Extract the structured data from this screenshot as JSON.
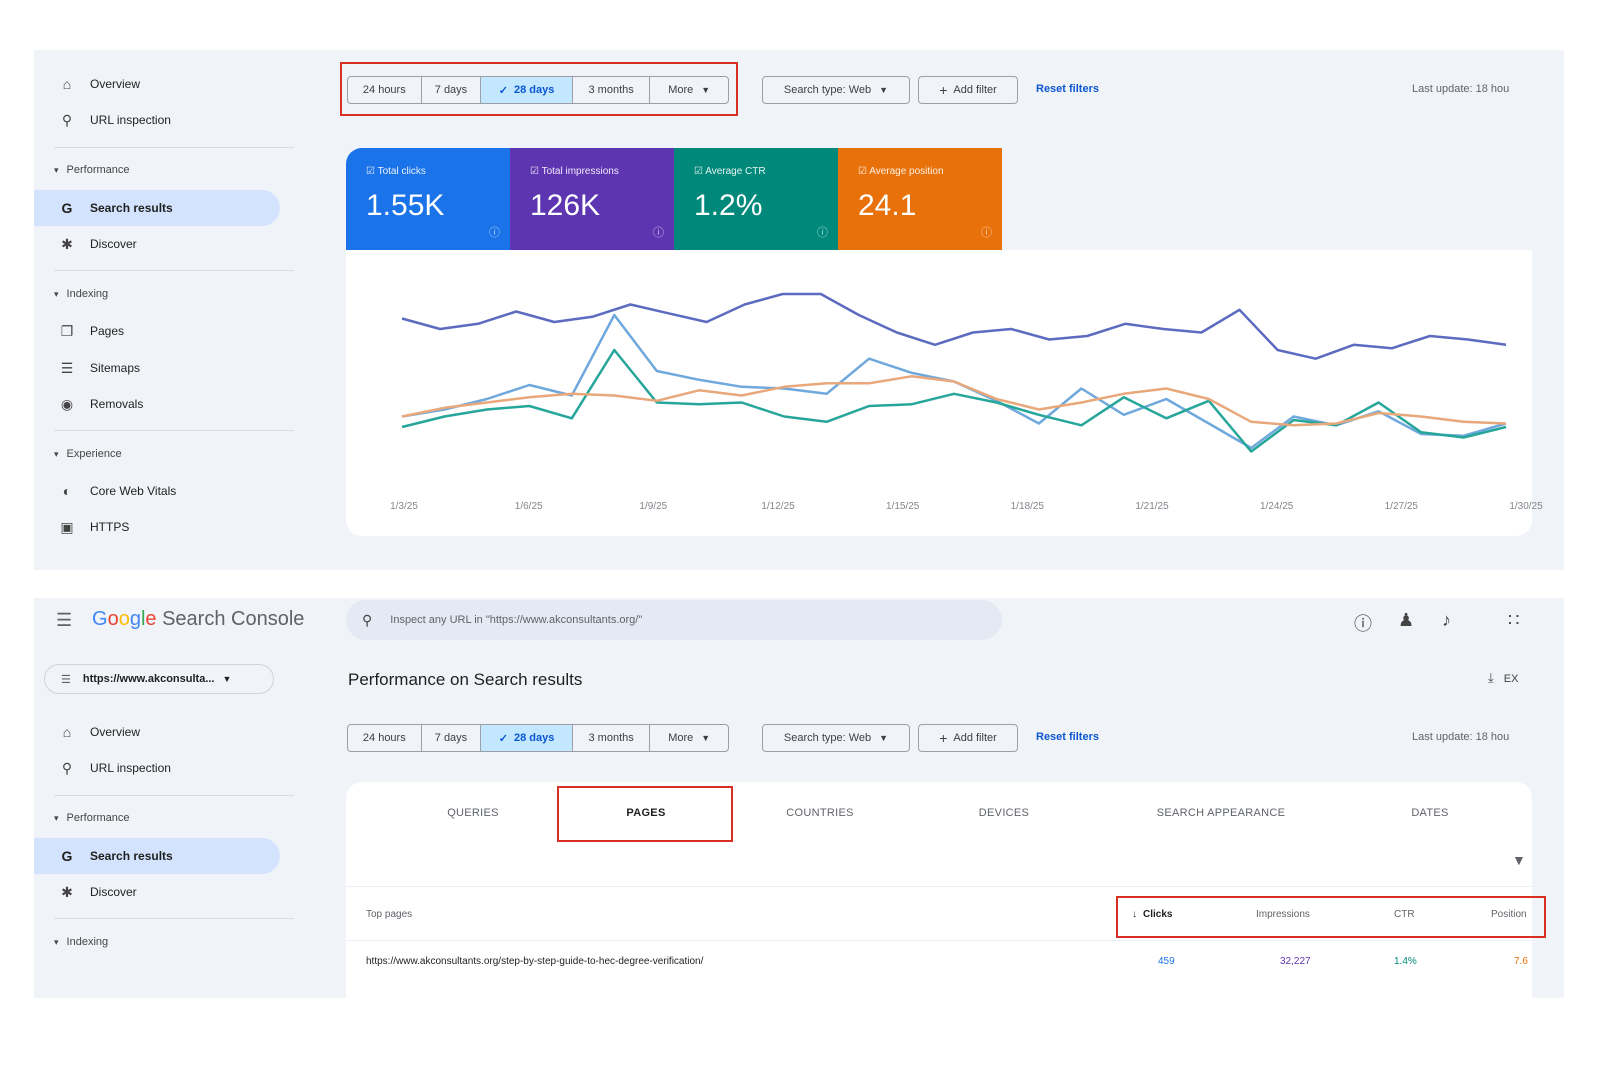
{
  "sidebar_top": {
    "overview": "Overview",
    "url_inspection": "URL inspection",
    "performance_head": "Performance",
    "search_results": "Search results",
    "discover": "Discover",
    "indexing_head": "Indexing",
    "pages": "Pages",
    "sitemaps": "Sitemaps",
    "removals": "Removals",
    "experience_head": "Experience",
    "core_web_vitals": "Core Web Vitals",
    "https": "HTTPS"
  },
  "date_range": {
    "options": [
      "24 hours",
      "7 days",
      "28 days",
      "3 months",
      "More"
    ],
    "selected": "28 days"
  },
  "filters": {
    "search_type": "Search type: Web",
    "add_filter": "Add filter",
    "reset": "Reset filters",
    "last_update": "Last update: 18 hou"
  },
  "metrics": {
    "clicks": {
      "label": "Total clicks",
      "value": "1.55K",
      "color": "#1a73e8"
    },
    "impressions": {
      "label": "Total impressions",
      "value": "126K",
      "color": "#5e35b1"
    },
    "ctr": {
      "label": "Average CTR",
      "value": "1.2%",
      "color": "#00897b"
    },
    "position": {
      "label": "Average position",
      "value": "24.1",
      "color": "#e8710a"
    }
  },
  "chart_data": {
    "type": "line",
    "x_ticks": [
      "1/3/25",
      "1/6/25",
      "1/9/25",
      "1/12/25",
      "1/15/25",
      "1/18/25",
      "1/21/25",
      "1/24/25",
      "1/27/25",
      "1/30/25"
    ],
    "series": [
      {
        "name": "Total impressions",
        "color": "#5c6bc0",
        "values": [
          0.78,
          0.72,
          0.75,
          0.82,
          0.76,
          0.79,
          0.86,
          0.81,
          0.76,
          0.86,
          0.92,
          0.92,
          0.8,
          0.7,
          0.63,
          0.7,
          0.72,
          0.66,
          0.68,
          0.75,
          0.72,
          0.7,
          0.83,
          0.6,
          0.55,
          0.63,
          0.61,
          0.68,
          0.66,
          0.63
        ]
      },
      {
        "name": "Total clicks",
        "color": "#6fa8dc",
        "values": [
          0.22,
          0.26,
          0.32,
          0.4,
          0.34,
          0.8,
          0.48,
          0.43,
          0.39,
          0.38,
          0.35,
          0.55,
          0.47,
          0.42,
          0.31,
          0.18,
          0.38,
          0.23,
          0.32,
          0.18,
          0.04,
          0.22,
          0.17,
          0.25,
          0.12,
          0.11,
          0.18
        ]
      },
      {
        "name": "Average CTR",
        "color": "#26a69a",
        "values": [
          0.16,
          0.22,
          0.26,
          0.28,
          0.21,
          0.6,
          0.3,
          0.29,
          0.3,
          0.22,
          0.19,
          0.28,
          0.29,
          0.35,
          0.3,
          0.23,
          0.17,
          0.33,
          0.21,
          0.31,
          0.02,
          0.2,
          0.17,
          0.3,
          0.13,
          0.1,
          0.16
        ]
      },
      {
        "name": "Average position",
        "color": "#e8a87c",
        "values": [
          0.22,
          0.27,
          0.3,
          0.33,
          0.35,
          0.34,
          0.31,
          0.37,
          0.34,
          0.39,
          0.41,
          0.41,
          0.45,
          0.42,
          0.32,
          0.26,
          0.3,
          0.35,
          0.38,
          0.32,
          0.19,
          0.17,
          0.18,
          0.24,
          0.22,
          0.19,
          0.18
        ]
      }
    ]
  },
  "header": {
    "product": "Search Console",
    "search_placeholder": "Inspect any URL in \"https://www.akconsultants.org/\"",
    "property": "https://www.akconsulta...",
    "page_title": "Performance on Search results",
    "export": "EX"
  },
  "sidebar_bottom": {
    "overview": "Overview",
    "url_inspection": "URL inspection",
    "performance_head": "Performance",
    "search_results": "Search results",
    "discover": "Discover",
    "indexing_head": "Indexing"
  },
  "tabs": [
    "QUERIES",
    "PAGES",
    "COUNTRIES",
    "DEVICES",
    "SEARCH APPEARANCE",
    "DATES"
  ],
  "table": {
    "heading": "Top pages",
    "columns": [
      "Clicks",
      "Impressions",
      "CTR",
      "Position"
    ],
    "rows": [
      {
        "page": "https://www.akconsultants.org/step-by-step-guide-to-hec-degree-verification/",
        "clicks": "459",
        "impressions": "32,227",
        "ctr": "1.4%",
        "position": "7.6"
      }
    ]
  }
}
